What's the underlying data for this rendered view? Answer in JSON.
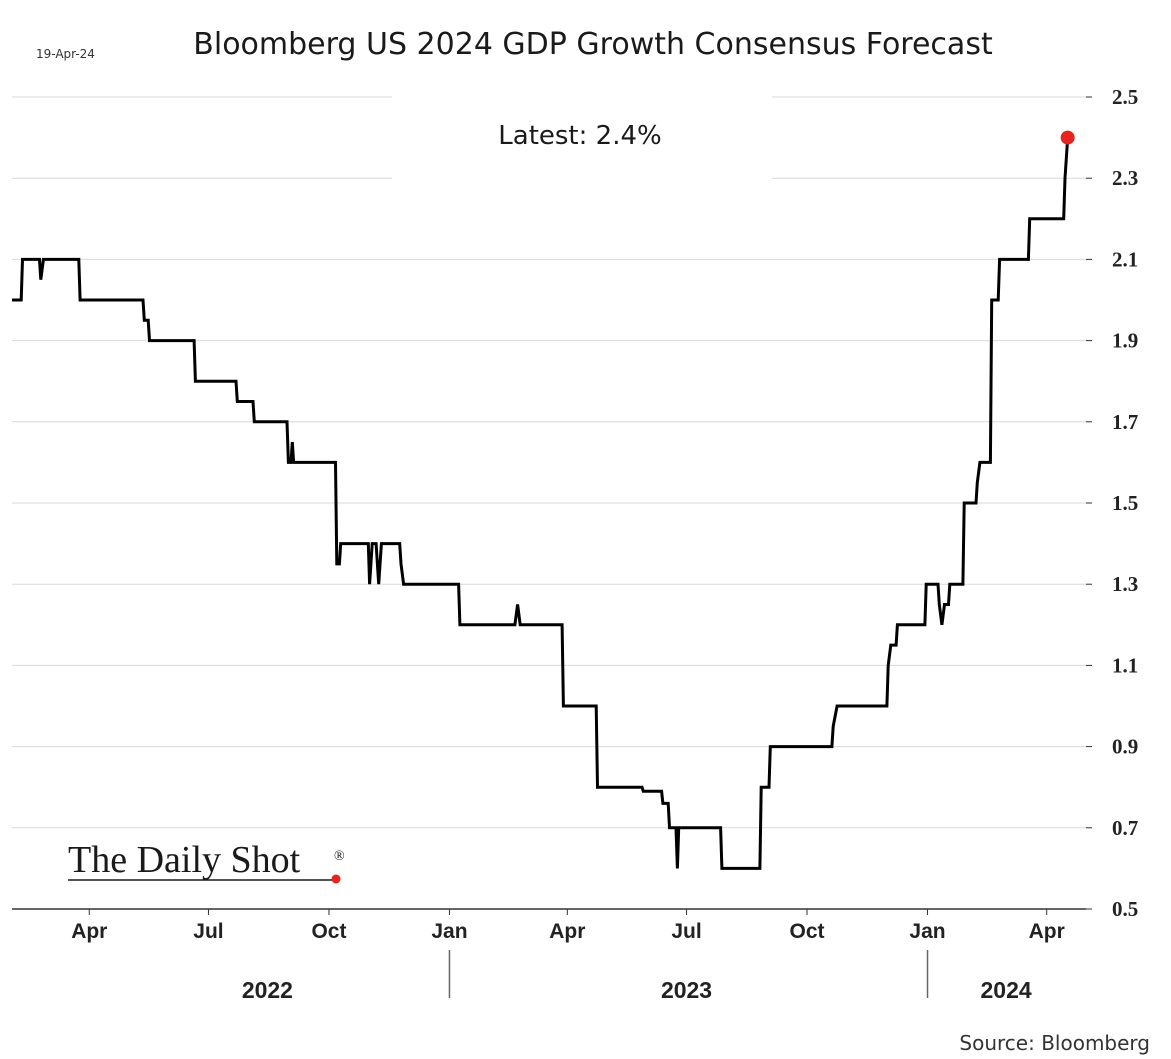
{
  "chart_data": {
    "type": "line",
    "title": "Bloomberg US 2024 GDP Growth Consensus Forecast",
    "date_stamp": "19-Apr-24",
    "annotation": "Latest:  2.4%",
    "source": "Source: Bloomberg",
    "logo": "The Daily Shot",
    "logo_mark": "®",
    "ylim": [
      0.5,
      2.5
    ],
    "yticks": [
      "0.5",
      "0.7",
      "0.9",
      "1.1",
      "1.3",
      "1.5",
      "1.7",
      "1.9",
      "2.1",
      "2.3",
      "2.5"
    ],
    "y_axis_side": "right",
    "grid": true,
    "xlim": [
      "2022-02-01",
      "2024-05-01"
    ],
    "x_month_ticks": [
      {
        "date": "2022-04-01",
        "label": "Apr"
      },
      {
        "date": "2022-07-01",
        "label": "Jul"
      },
      {
        "date": "2022-10-01",
        "label": "Oct"
      },
      {
        "date": "2023-01-01",
        "label": "Jan"
      },
      {
        "date": "2023-04-01",
        "label": "Apr"
      },
      {
        "date": "2023-07-01",
        "label": "Jul"
      },
      {
        "date": "2023-10-01",
        "label": "Oct"
      },
      {
        "date": "2024-01-01",
        "label": "Jan"
      },
      {
        "date": "2024-04-01",
        "label": "Apr"
      }
    ],
    "x_year_labels": [
      {
        "label": "2022",
        "center": "2022-08-15"
      },
      {
        "label": "2023",
        "center": "2023-07-01"
      },
      {
        "label": "2024",
        "center": "2024-03-01"
      }
    ],
    "x_year_dividers": [
      "2023-01-01",
      "2024-01-01"
    ],
    "series": [
      {
        "color": "#000000",
        "points": [
          [
            "2022-02-01",
            2.0
          ],
          [
            "2022-02-08",
            2.0
          ],
          [
            "2022-02-09",
            2.1
          ],
          [
            "2022-02-22",
            2.1
          ],
          [
            "2022-02-23",
            2.05
          ],
          [
            "2022-02-25",
            2.1
          ],
          [
            "2022-03-24",
            2.1
          ],
          [
            "2022-03-25",
            2.0
          ],
          [
            "2022-05-12",
            2.0
          ],
          [
            "2022-05-13",
            1.95
          ],
          [
            "2022-05-16",
            1.95
          ],
          [
            "2022-05-17",
            1.9
          ],
          [
            "2022-06-20",
            1.9
          ],
          [
            "2022-06-21",
            1.8
          ],
          [
            "2022-07-22",
            1.8
          ],
          [
            "2022-07-23",
            1.75
          ],
          [
            "2022-08-04",
            1.75
          ],
          [
            "2022-08-05",
            1.7
          ],
          [
            "2022-08-30",
            1.7
          ],
          [
            "2022-08-31",
            1.6
          ],
          [
            "2022-09-02",
            1.6
          ],
          [
            "2022-09-03",
            1.65
          ],
          [
            "2022-09-04",
            1.6
          ],
          [
            "2022-10-06",
            1.6
          ],
          [
            "2022-10-07",
            1.35
          ],
          [
            "2022-10-09",
            1.35
          ],
          [
            "2022-10-10",
            1.4
          ],
          [
            "2022-10-31",
            1.4
          ],
          [
            "2022-11-01",
            1.3
          ],
          [
            "2022-11-03",
            1.4
          ],
          [
            "2022-11-06",
            1.4
          ],
          [
            "2022-11-08",
            1.3
          ],
          [
            "2022-11-10",
            1.4
          ],
          [
            "2022-11-24",
            1.4
          ],
          [
            "2022-11-25",
            1.35
          ],
          [
            "2022-11-27",
            1.3
          ],
          [
            "2023-01-08",
            1.3
          ],
          [
            "2023-01-09",
            1.2
          ],
          [
            "2023-02-20",
            1.2
          ],
          [
            "2023-02-22",
            1.25
          ],
          [
            "2023-02-24",
            1.2
          ],
          [
            "2023-03-28",
            1.2
          ],
          [
            "2023-03-29",
            1.0
          ],
          [
            "2023-04-23",
            1.0
          ],
          [
            "2023-04-24",
            0.8
          ],
          [
            "2023-05-28",
            0.8
          ],
          [
            "2023-05-29",
            0.79
          ],
          [
            "2023-06-12",
            0.79
          ],
          [
            "2023-06-13",
            0.76
          ],
          [
            "2023-06-17",
            0.76
          ],
          [
            "2023-06-18",
            0.7
          ],
          [
            "2023-06-23",
            0.7
          ],
          [
            "2023-06-24",
            0.6
          ],
          [
            "2023-06-25",
            0.7
          ],
          [
            "2023-07-27",
            0.7
          ],
          [
            "2023-07-28",
            0.6
          ],
          [
            "2023-08-26",
            0.6
          ],
          [
            "2023-08-27",
            0.8
          ],
          [
            "2023-09-02",
            0.8
          ],
          [
            "2023-09-03",
            0.9
          ],
          [
            "2023-10-20",
            0.9
          ],
          [
            "2023-10-21",
            0.95
          ],
          [
            "2023-10-24",
            1.0
          ],
          [
            "2023-12-01",
            1.0
          ],
          [
            "2023-12-02",
            1.1
          ],
          [
            "2023-12-04",
            1.15
          ],
          [
            "2023-12-08",
            1.15
          ],
          [
            "2023-12-09",
            1.2
          ],
          [
            "2023-12-30",
            1.2
          ],
          [
            "2023-12-31",
            1.3
          ],
          [
            "2024-01-09",
            1.3
          ],
          [
            "2024-01-10",
            1.25
          ],
          [
            "2024-01-12",
            1.2
          ],
          [
            "2024-01-14",
            1.25
          ],
          [
            "2024-01-17",
            1.25
          ],
          [
            "2024-01-18",
            1.3
          ],
          [
            "2024-01-28",
            1.3
          ],
          [
            "2024-01-29",
            1.5
          ],
          [
            "2024-02-07",
            1.5
          ],
          [
            "2024-02-08",
            1.55
          ],
          [
            "2024-02-10",
            1.6
          ],
          [
            "2024-02-18",
            1.6
          ],
          [
            "2024-02-19",
            2.0
          ],
          [
            "2024-02-24",
            2.0
          ],
          [
            "2024-02-25",
            2.1
          ],
          [
            "2024-03-18",
            2.1
          ],
          [
            "2024-03-19",
            2.2
          ],
          [
            "2024-04-14",
            2.2
          ],
          [
            "2024-04-15",
            2.3
          ],
          [
            "2024-04-17",
            2.4
          ]
        ]
      }
    ],
    "latest_point": {
      "x": "2024-04-17",
      "y": 2.4,
      "color": "#e8221f"
    }
  }
}
